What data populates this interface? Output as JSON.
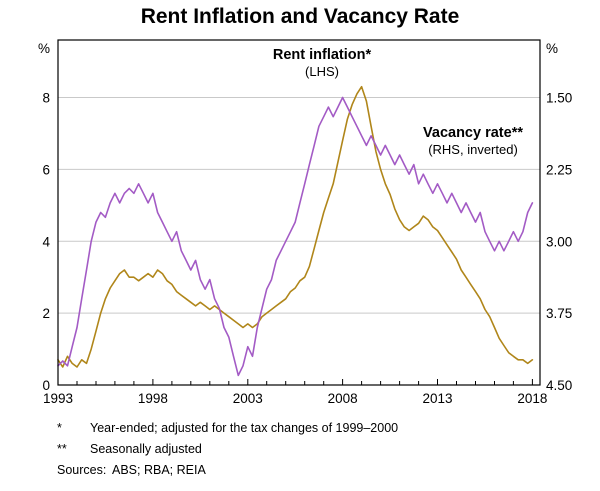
{
  "title": "Rent Inflation and Vacancy Rate",
  "left_axis": {
    "unit": "%",
    "ticks": [
      "0",
      "2",
      "4",
      "6",
      "8"
    ]
  },
  "right_axis": {
    "unit": "%",
    "ticks": [
      "1.50",
      "2.25",
      "3.00",
      "3.75",
      "4.50"
    ]
  },
  "x_axis": {
    "ticks": [
      "1993",
      "1998",
      "2003",
      "2008",
      "2013",
      "2018"
    ]
  },
  "annotations": {
    "rent_label": "Rent inflation*",
    "rent_sub": "(LHS)",
    "vacancy_label": "Vacancy rate**",
    "vacancy_sub": "(RHS, inverted)"
  },
  "footnotes": [
    {
      "marker": "*",
      "text": "Year-ended; adjusted for the tax changes of 1999–2000"
    },
    {
      "marker": "**",
      "text": "Seasonally adjusted"
    },
    {
      "marker": "Sources:",
      "text": "ABS; RBA; REIA"
    }
  ],
  "colors": {
    "rent": "#b0861a",
    "vacancy": "#a35bc5",
    "grid": "#c9c9c9",
    "frame": "#000000"
  },
  "chart_data": {
    "type": "line",
    "title": "Rent Inflation and Vacancy Rate",
    "grid": "horizontal",
    "x": [
      1993,
      1993.25,
      1993.5,
      1993.75,
      1994,
      1994.25,
      1994.5,
      1994.75,
      1995,
      1995.25,
      1995.5,
      1995.75,
      1996,
      1996.25,
      1996.5,
      1996.75,
      1997,
      1997.25,
      1997.5,
      1997.75,
      1998,
      1998.25,
      1998.5,
      1998.75,
      1999,
      1999.25,
      1999.5,
      1999.75,
      2000,
      2000.25,
      2000.5,
      2000.75,
      2001,
      2001.25,
      2001.5,
      2001.75,
      2002,
      2002.25,
      2002.5,
      2002.75,
      2003,
      2003.25,
      2003.5,
      2003.75,
      2004,
      2004.25,
      2004.5,
      2004.75,
      2005,
      2005.25,
      2005.5,
      2005.75,
      2006,
      2006.25,
      2006.5,
      2006.75,
      2007,
      2007.25,
      2007.5,
      2007.75,
      2008,
      2008.25,
      2008.5,
      2008.75,
      2009,
      2009.25,
      2009.5,
      2009.75,
      2010,
      2010.25,
      2010.5,
      2010.75,
      2011,
      2011.25,
      2011.5,
      2011.75,
      2012,
      2012.25,
      2012.5,
      2012.75,
      2013,
      2013.25,
      2013.5,
      2013.75,
      2014,
      2014.25,
      2014.5,
      2014.75,
      2015,
      2015.25,
      2015.5,
      2015.75,
      2016,
      2016.25,
      2016.5,
      2016.75,
      2017,
      2017.25,
      2017.5,
      2017.75,
      2018
    ],
    "series": [
      {
        "name": "Rent inflation (LHS, %, year-ended)",
        "axis": "left",
        "color": "#b0861a",
        "values": [
          0.7,
          0.5,
          0.8,
          0.6,
          0.5,
          0.7,
          0.6,
          1.0,
          1.5,
          2.0,
          2.4,
          2.7,
          2.9,
          3.1,
          3.2,
          3.0,
          3.0,
          2.9,
          3.0,
          3.1,
          3.0,
          3.2,
          3.1,
          2.9,
          2.8,
          2.6,
          2.5,
          2.4,
          2.3,
          2.2,
          2.3,
          2.2,
          2.1,
          2.2,
          2.1,
          2.0,
          1.9,
          1.8,
          1.7,
          1.6,
          1.7,
          1.6,
          1.7,
          1.9,
          2.0,
          2.1,
          2.2,
          2.3,
          2.4,
          2.6,
          2.7,
          2.9,
          3.0,
          3.3,
          3.8,
          4.3,
          4.8,
          5.2,
          5.6,
          6.2,
          6.8,
          7.4,
          7.8,
          8.1,
          8.3,
          7.9,
          7.2,
          6.5,
          6.0,
          5.6,
          5.3,
          4.9,
          4.6,
          4.4,
          4.3,
          4.4,
          4.5,
          4.7,
          4.6,
          4.4,
          4.3,
          4.1,
          3.9,
          3.7,
          3.5,
          3.2,
          3.0,
          2.8,
          2.6,
          2.4,
          2.1,
          1.9,
          1.6,
          1.3,
          1.1,
          0.9,
          0.8,
          0.7,
          0.7,
          0.6,
          0.7
        ]
      },
      {
        "name": "Vacancy rate (RHS, %, inverted)",
        "axis": "right",
        "color": "#a35bc5",
        "values": [
          4.3,
          4.25,
          4.3,
          4.1,
          3.9,
          3.6,
          3.3,
          3.0,
          2.8,
          2.7,
          2.75,
          2.6,
          2.5,
          2.6,
          2.5,
          2.45,
          2.5,
          2.4,
          2.5,
          2.6,
          2.5,
          2.7,
          2.8,
          2.9,
          3.0,
          2.9,
          3.1,
          3.2,
          3.3,
          3.2,
          3.4,
          3.5,
          3.4,
          3.6,
          3.7,
          3.9,
          4.0,
          4.2,
          4.4,
          4.3,
          4.1,
          4.2,
          3.9,
          3.7,
          3.5,
          3.4,
          3.2,
          3.1,
          3.0,
          2.9,
          2.8,
          2.6,
          2.4,
          2.2,
          2.0,
          1.8,
          1.7,
          1.6,
          1.7,
          1.6,
          1.5,
          1.6,
          1.7,
          1.8,
          1.9,
          2.0,
          1.9,
          2.0,
          2.1,
          2.0,
          2.1,
          2.2,
          2.1,
          2.2,
          2.3,
          2.2,
          2.4,
          2.3,
          2.4,
          2.5,
          2.4,
          2.5,
          2.6,
          2.5,
          2.6,
          2.7,
          2.6,
          2.7,
          2.8,
          2.7,
          2.9,
          3.0,
          3.1,
          3.0,
          3.1,
          3.0,
          2.9,
          3.0,
          2.9,
          2.7,
          2.6
        ]
      }
    ],
    "axes": {
      "x": {
        "min": 1993,
        "max": 2018.4,
        "ticks": [
          1993,
          1998,
          2003,
          2008,
          2013,
          2018
        ]
      },
      "left": {
        "min": 0,
        "max": 9.6,
        "ticks": [
          0,
          2,
          4,
          6,
          8
        ],
        "label": "%"
      },
      "right": {
        "top_value": 0.9,
        "bottom_value": 4.5,
        "ticks": [
          1.5,
          2.25,
          3.0,
          3.75,
          4.5
        ],
        "label": "%",
        "inverted": true
      }
    }
  }
}
